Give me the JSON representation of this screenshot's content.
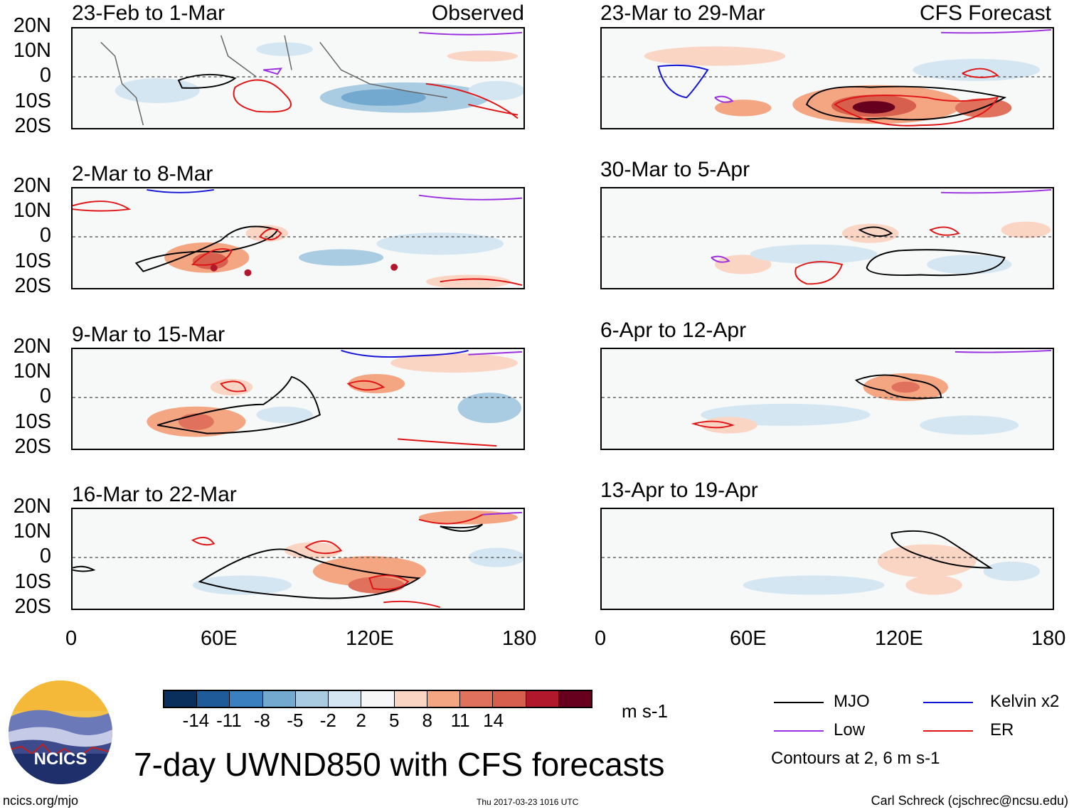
{
  "panels": [
    {
      "title": "23-Feb to 1-Mar",
      "tag": "Observed"
    },
    {
      "title": "2-Mar to 8-Mar",
      "tag": ""
    },
    {
      "title": "9-Mar to 15-Mar",
      "tag": ""
    },
    {
      "title": "16-Mar to 22-Mar",
      "tag": ""
    },
    {
      "title": "23-Mar to 29-Mar",
      "tag": "CFS Forecast"
    },
    {
      "title": "30-Mar to 5-Apr",
      "tag": ""
    },
    {
      "title": "6-Apr to 12-Apr",
      "tag": ""
    },
    {
      "title": "13-Apr to 19-Apr",
      "tag": ""
    }
  ],
  "lat_labels": [
    "20N",
    "10N",
    "0",
    "10S",
    "20S"
  ],
  "lon_labels": [
    "0",
    "60E",
    "120E",
    "180"
  ],
  "colorbar": {
    "colors": [
      "#0b2f5c",
      "#1f5a99",
      "#3a7fbf",
      "#74a9cf",
      "#a9cce3",
      "#d4e6f1",
      "#f7f7f7",
      "#fbd5c4",
      "#f4a582",
      "#e0715c",
      "#d6604d",
      "#b2182b",
      "#67001f"
    ],
    "ticks": [
      "-14",
      "-11",
      "-8",
      "-5",
      "-2",
      "2",
      "5",
      "8",
      "11",
      "14"
    ],
    "units": "m s-1"
  },
  "legend": {
    "items": [
      {
        "label": "MJO",
        "color": "#000000"
      },
      {
        "label": "Kelvin x2",
        "color": "#1414d8"
      },
      {
        "label": "Low",
        "color": "#9a2fe0"
      },
      {
        "label": "ER",
        "color": "#e01414"
      }
    ],
    "note": "Contours at 2, 6 m s-1"
  },
  "title": "7-day UWND850 with CFS forecasts",
  "logo_text": "NCICS",
  "footer": {
    "left": "ncics.org/mjo",
    "center": "Thu 2017-03-23 1016 UTC",
    "right": "Carl Schreck (cjschrec@ncsu.edu)"
  }
}
